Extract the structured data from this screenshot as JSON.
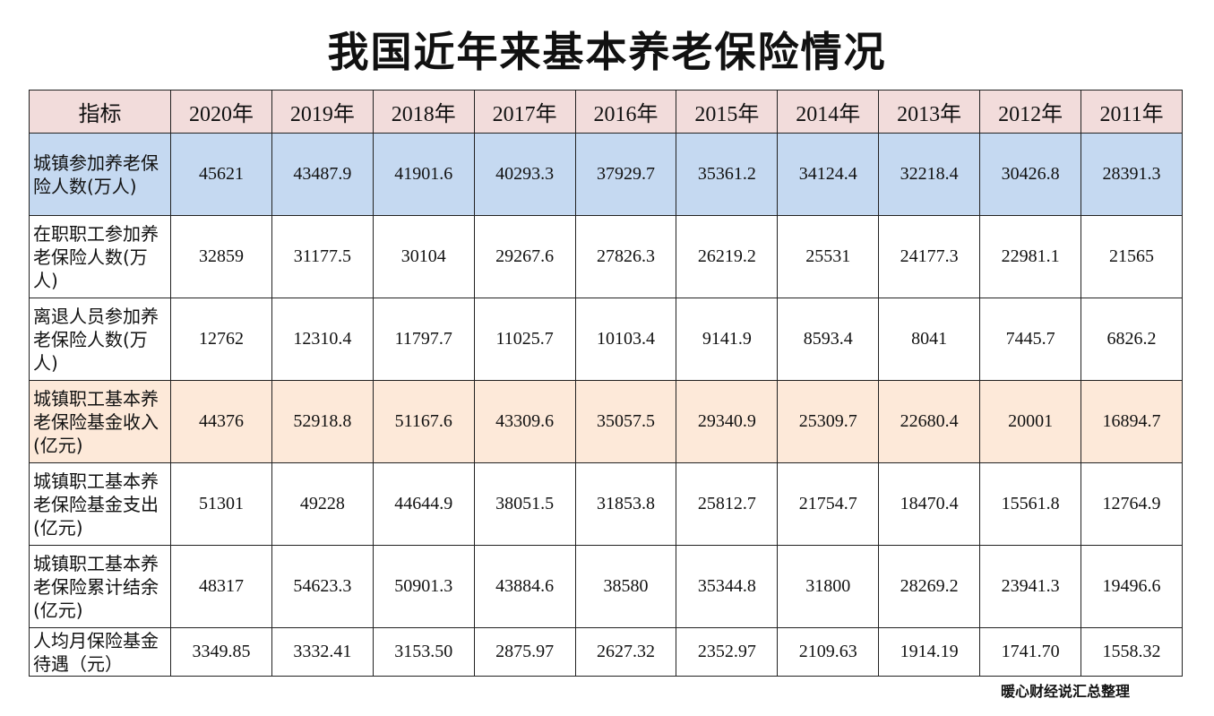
{
  "title": "我国近年来基本养老保险情况",
  "colors": {
    "header_bg": "#f2dcdb",
    "highlight_blue": "#c5d9f1",
    "highlight_peach": "#fde9d9"
  },
  "chart_data": {
    "type": "table",
    "title": "我国近年来基本养老保险情况",
    "header_label": "指标",
    "columns": [
      "2020年",
      "2019年",
      "2018年",
      "2017年",
      "2016年",
      "2015年",
      "2014年",
      "2013年",
      "2012年",
      "2011年"
    ],
    "rows": [
      {
        "label": "城镇参加养老保险人数(万人)",
        "highlight": "blue",
        "values": [
          "45621",
          "43487.9",
          "41901.6",
          "40293.3",
          "37929.7",
          "35361.2",
          "34124.4",
          "32218.4",
          "30426.8",
          "28391.3"
        ]
      },
      {
        "label": "在职职工参加养老保险人数(万人)",
        "highlight": "none",
        "values": [
          "32859",
          "31177.5",
          "30104",
          "29267.6",
          "27826.3",
          "26219.2",
          "25531",
          "24177.3",
          "22981.1",
          "21565"
        ]
      },
      {
        "label": "离退人员参加养老保险人数(万人)",
        "highlight": "none",
        "values": [
          "12762",
          "12310.4",
          "11797.7",
          "11025.7",
          "10103.4",
          "9141.9",
          "8593.4",
          "8041",
          "7445.7",
          "6826.2"
        ]
      },
      {
        "label": "城镇职工基本养老保险基金收入(亿元)",
        "highlight": "peach",
        "values": [
          "44376",
          "52918.8",
          "51167.6",
          "43309.6",
          "35057.5",
          "29340.9",
          "25309.7",
          "22680.4",
          "20001",
          "16894.7"
        ]
      },
      {
        "label": "城镇职工基本养老保险基金支出(亿元)",
        "highlight": "none",
        "values": [
          "51301",
          "49228",
          "44644.9",
          "38051.5",
          "31853.8",
          "25812.7",
          "21754.7",
          "18470.4",
          "15561.8",
          "12764.9"
        ]
      },
      {
        "label": "城镇职工基本养老保险累计结余(亿元)",
        "highlight": "none",
        "values": [
          "48317",
          "54623.3",
          "50901.3",
          "43884.6",
          "38580",
          "35344.8",
          "31800",
          "28269.2",
          "23941.3",
          "19496.6"
        ]
      },
      {
        "label": "人均月保险基金待遇（元）",
        "highlight": "none",
        "values": [
          "3349.85",
          "3332.41",
          "3153.50",
          "2875.97",
          "2627.32",
          "2352.97",
          "2109.63",
          "1914.19",
          "1741.70",
          "1558.32"
        ]
      }
    ]
  },
  "footer": "暖心财经说汇总整理"
}
